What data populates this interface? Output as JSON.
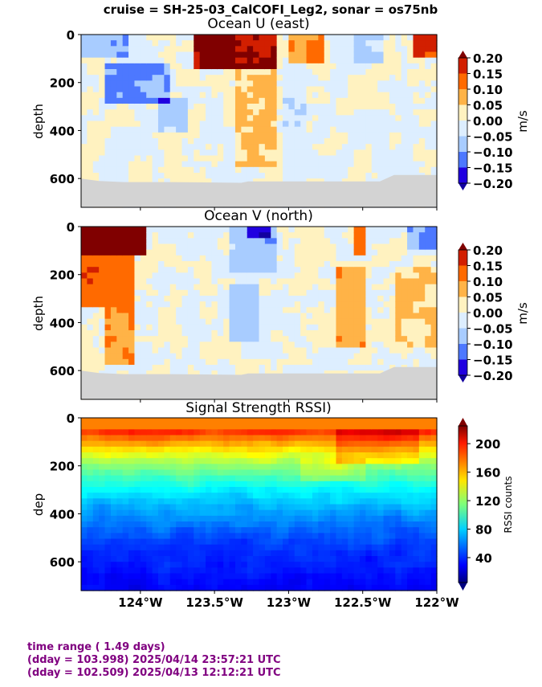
{
  "suptitle": "cruise = SH-25-03_CalCOFI_Leg2,  sonar = os75nb",
  "footer": {
    "line1": "time range ( 1.49 days)",
    "line2": "(dday = 103.998) 2025/04/14 23:57:21 UTC",
    "line3": "(dday = 102.509) 2025/04/13 12:12:21 UTC"
  },
  "chart_data": [
    {
      "type": "heatmap",
      "title": "Ocean U (east)",
      "ylabel": "depth",
      "xlim": [
        -124.4,
        -122.0
      ],
      "ylim": [
        720,
        0
      ],
      "yticks": [
        0,
        200,
        400,
        600
      ],
      "colorbar": {
        "label": "m/s",
        "ticks": [
          "0.20",
          "0.15",
          "0.10",
          "0.05",
          "0.00",
          "−0.05",
          "−0.10",
          "−0.15",
          "−0.20"
        ],
        "levels": [
          0.2,
          0.15,
          0.1,
          0.05,
          0.0,
          -0.05,
          -0.1,
          -0.15,
          -0.2
        ],
        "colors": [
          "#800000",
          "#d21f00",
          "#ff6a00",
          "#ffb347",
          "#fff2c0",
          "#ddeeff",
          "#a8ccff",
          "#4d78ff",
          "#2000e0",
          "#1200a0"
        ]
      },
      "bottom_depth_m": 615
    },
    {
      "type": "heatmap",
      "title": "Ocean V (north)",
      "ylabel": "depth",
      "xlim": [
        -124.4,
        -122.0
      ],
      "ylim": [
        720,
        0
      ],
      "yticks": [
        0,
        200,
        400,
        600
      ],
      "colorbar": {
        "label": "m/s",
        "ticks": [
          "0.20",
          "0.15",
          "0.10",
          "0.05",
          "0.00",
          "−0.05",
          "−0.10",
          "−0.15",
          "−0.20"
        ],
        "levels": [
          0.2,
          0.15,
          0.1,
          0.05,
          0.0,
          -0.05,
          -0.1,
          -0.15,
          -0.2
        ],
        "colors": [
          "#800000",
          "#d21f00",
          "#ff6a00",
          "#ffb347",
          "#fff2c0",
          "#ddeeff",
          "#a8ccff",
          "#4d78ff",
          "#2000e0",
          "#1200a0"
        ]
      },
      "bottom_depth_m": 615
    },
    {
      "type": "heatmap",
      "title": "Signal Strength RSSI)",
      "ylabel": "dep",
      "xlim": [
        -124.4,
        -122.0
      ],
      "ylim": [
        720,
        0
      ],
      "yticks": [
        0,
        200,
        400,
        600
      ],
      "xticks": [
        -124.0,
        -123.5,
        -123.0,
        -122.5,
        -122.0
      ],
      "xticklabels": [
        "124°W",
        "123.5°W",
        "123°W",
        "122.5°W",
        "122°W"
      ],
      "colorbar": {
        "label": "RSSI counts",
        "ticks": [
          "200",
          "160",
          "120",
          "80",
          "40"
        ],
        "levels": [
          200,
          160,
          120,
          80,
          40
        ],
        "range": [
          5,
          225
        ]
      }
    }
  ]
}
